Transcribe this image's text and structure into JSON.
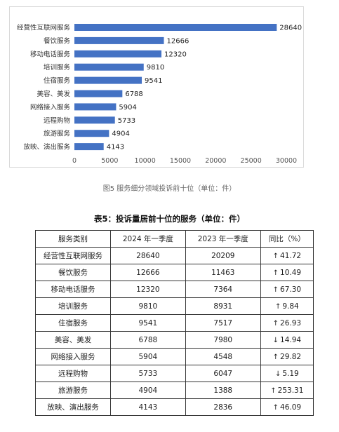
{
  "chart_data": {
    "type": "bar",
    "orientation": "horizontal",
    "categories": [
      "经营性互联网服务",
      "餐饮服务",
      "移动电话服务",
      "培训服务",
      "住宿服务",
      "美容、美发",
      "网络接入服务",
      "远程购物",
      "旅游服务",
      "放映、演出服务"
    ],
    "values": [
      28640,
      12666,
      12320,
      9810,
      9541,
      6788,
      5904,
      5733,
      4904,
      4143
    ],
    "x_ticks": [
      "0",
      "5000",
      "10000",
      "15000",
      "20000",
      "25000",
      "30000"
    ],
    "xlim": [
      0,
      30000
    ],
    "bar_color": "#4472c4",
    "grid": false
  },
  "caption": "图5  服务细分领域投诉前十位（单位：件）",
  "table": {
    "title": "表5：投诉量居前十位的服务（单位：件）",
    "headers": [
      "服务类别",
      "2024 年一季度",
      "2023 年一季度",
      "同比（%）"
    ],
    "rows": [
      {
        "category": "经营性互联网服务",
        "q1_2024": "28640",
        "q1_2023": "20209",
        "direction": "up",
        "yoy": "41.72"
      },
      {
        "category": "餐饮服务",
        "q1_2024": "12666",
        "q1_2023": "11463",
        "direction": "up",
        "yoy": "10.49"
      },
      {
        "category": "移动电话服务",
        "q1_2024": "12320",
        "q1_2023": "7364",
        "direction": "up",
        "yoy": "67.30"
      },
      {
        "category": "培训服务",
        "q1_2024": "9810",
        "q1_2023": "8931",
        "direction": "up",
        "yoy": "9.84"
      },
      {
        "category": "住宿服务",
        "q1_2024": "9541",
        "q1_2023": "7517",
        "direction": "up",
        "yoy": "26.93"
      },
      {
        "category": "美容、美发",
        "q1_2024": "6788",
        "q1_2023": "7980",
        "direction": "down",
        "yoy": "14.94"
      },
      {
        "category": "网络接入服务",
        "q1_2024": "5904",
        "q1_2023": "4548",
        "direction": "up",
        "yoy": "29.82"
      },
      {
        "category": "远程购物",
        "q1_2024": "5733",
        "q1_2023": "6047",
        "direction": "down",
        "yoy": "5.19"
      },
      {
        "category": "旅游服务",
        "q1_2024": "4904",
        "q1_2023": "1388",
        "direction": "up",
        "yoy": "253.31"
      },
      {
        "category": "放映、演出服务",
        "q1_2024": "4143",
        "q1_2023": "2836",
        "direction": "up",
        "yoy": "46.09"
      }
    ]
  }
}
